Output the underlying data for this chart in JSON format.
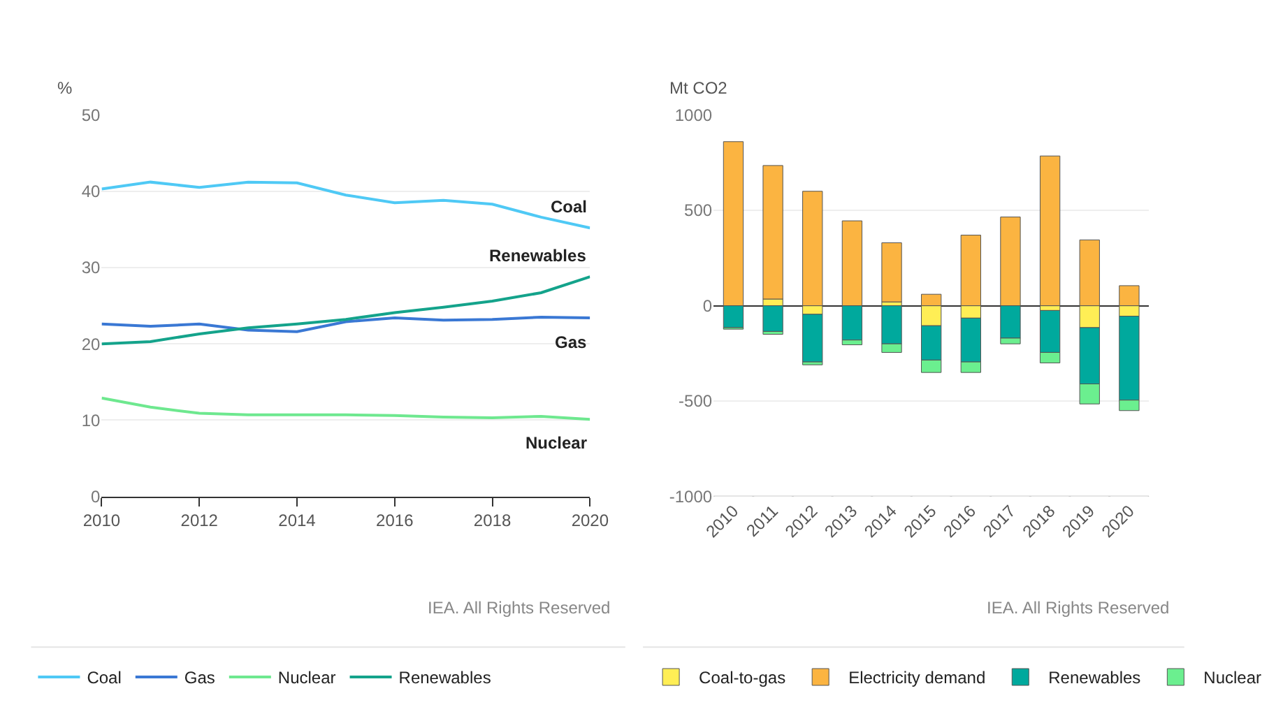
{
  "chart_data": [
    {
      "type": "line",
      "ylabel": "%",
      "x": [
        2010,
        2011,
        2012,
        2013,
        2014,
        2015,
        2016,
        2017,
        2018,
        2019,
        2020
      ],
      "xlim": [
        2010,
        2020
      ],
      "xticks": [
        2010,
        2012,
        2014,
        2016,
        2018,
        2020
      ],
      "ylim": [
        0,
        50
      ],
      "yticks": [
        0,
        10,
        20,
        30,
        40,
        50
      ],
      "grid": "y",
      "legend": "bottom",
      "marker": "none",
      "line_style": "solid",
      "series": [
        {
          "name": "Coal",
          "color": "#4fc9f5",
          "values": [
            40.3,
            41.2,
            40.5,
            41.2,
            41.1,
            39.5,
            38.5,
            38.8,
            38.3,
            36.6,
            35.2
          ]
        },
        {
          "name": "Gas",
          "color": "#3a78d4",
          "values": [
            22.6,
            22.3,
            22.6,
            21.8,
            21.6,
            22.9,
            23.4,
            23.1,
            23.2,
            23.5,
            23.4
          ]
        },
        {
          "name": "Nuclear",
          "color": "#6ee88f",
          "values": [
            12.9,
            11.7,
            10.9,
            10.7,
            10.7,
            10.7,
            10.6,
            10.4,
            10.3,
            10.5,
            10.1
          ]
        },
        {
          "name": "Renewables",
          "color": "#14a38b",
          "values": [
            20.0,
            20.3,
            21.3,
            22.1,
            22.6,
            23.2,
            24.1,
            24.8,
            25.6,
            26.7,
            28.8
          ]
        }
      ],
      "annotations": [
        "IEA. All Rights Reserved"
      ]
    },
    {
      "type": "bar",
      "stacked": true,
      "ylabel": "Mt CO2",
      "categories": [
        "2010",
        "2011",
        "2012",
        "2013",
        "2014",
        "2015",
        "2016",
        "2017",
        "2018",
        "2019",
        "2020"
      ],
      "ylim": [
        -1000,
        1000
      ],
      "yticks": [
        -1000,
        -500,
        0,
        500,
        1000
      ],
      "grid": "y",
      "legend": "bottom",
      "series": [
        {
          "name": "Coal-to-gas",
          "color": "#ffee55",
          "values": [
            null,
            35,
            -45,
            null,
            20,
            -105,
            -65,
            null,
            -25,
            -115,
            -55
          ]
        },
        {
          "name": "Electricity demand",
          "color": "#fbb441",
          "values": [
            860,
            700,
            600,
            445,
            310,
            60,
            370,
            465,
            785,
            345,
            105
          ]
        },
        {
          "name": "Renewables",
          "color": "#00a99d",
          "values": [
            -115,
            -135,
            -250,
            -180,
            -200,
            -180,
            -230,
            -170,
            -220,
            -295,
            -440
          ]
        },
        {
          "name": "Nuclear",
          "color": "#6bef8f",
          "values": [
            -8,
            -15,
            -15,
            -25,
            -45,
            -65,
            -55,
            -30,
            -55,
            -105,
            -55
          ]
        }
      ],
      "annotations": [
        "IEA. All Rights Reserved"
      ]
    }
  ]
}
